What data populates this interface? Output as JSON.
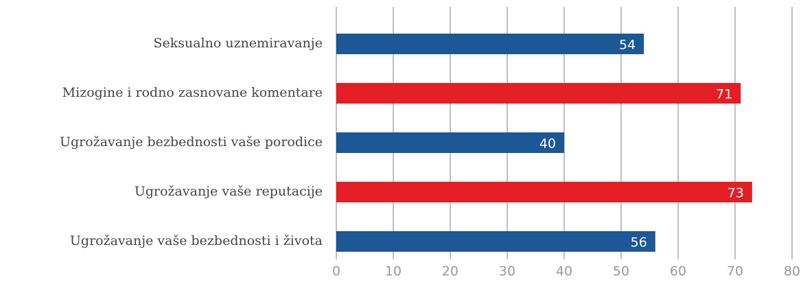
{
  "chart_data": {
    "type": "barh",
    "categories": [
      "Seksualno uznemiravanje",
      "Mizogine i rodno zasnovane komentare",
      "Ugrožavanje bezbednosti vaše porodice",
      "Ugrožavanje vaše reputacije",
      "Ugrožavanje vaše bezbednosti i života"
    ],
    "values": [
      54,
      71,
      40,
      73,
      56
    ],
    "colors": [
      "#1c5796",
      "#e31e24",
      "#1c5796",
      "#e31e24",
      "#1c5796"
    ],
    "xlim": [
      0,
      80
    ],
    "xticks": [
      0,
      10,
      20,
      30,
      40,
      50,
      60,
      70,
      80
    ],
    "grid": true
  }
}
